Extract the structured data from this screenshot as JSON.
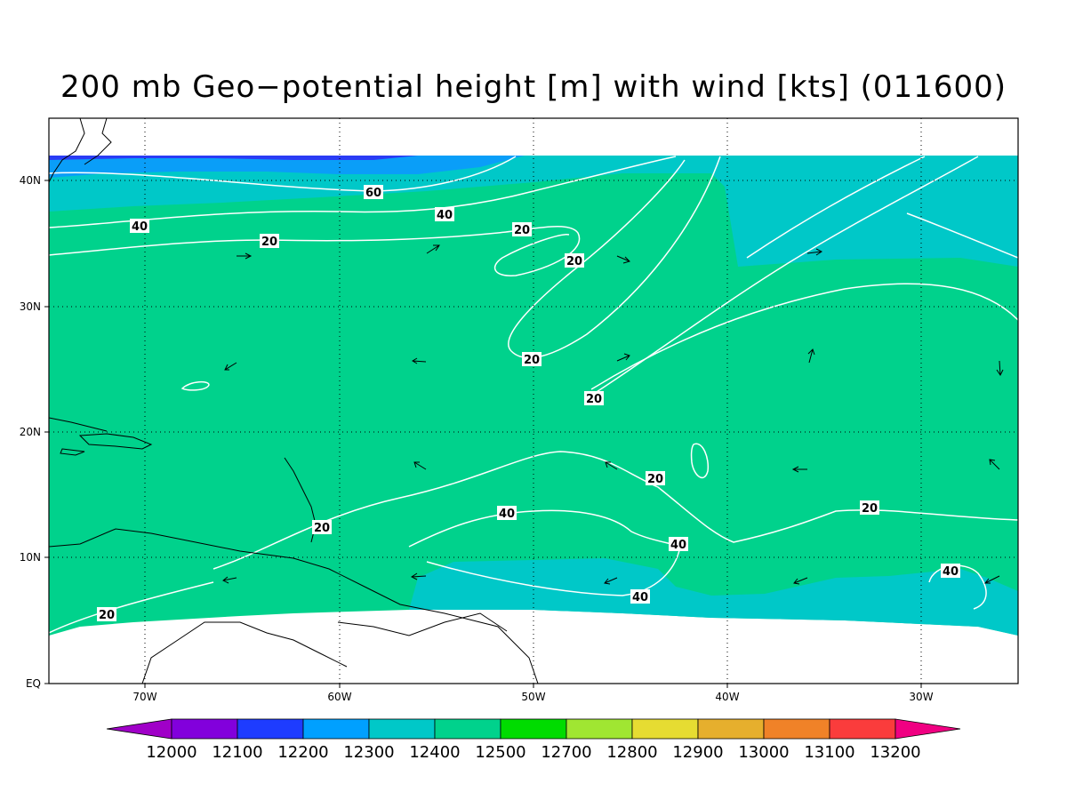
{
  "title": "200 mb Geo−potential height [m] with wind [kts] (011600)",
  "map": {
    "lat_ticks": [
      "40N",
      "30N",
      "20N",
      "10N",
      "EQ"
    ],
    "lon_ticks": [
      "70W",
      "60W",
      "50W",
      "40W",
      "30W"
    ],
    "contour_labels": [
      "60",
      "40",
      "20",
      "20",
      "20",
      "20",
      "20",
      "40",
      "20",
      "20",
      "40",
      "20",
      "40",
      "40",
      "40",
      "20"
    ],
    "colors": {
      "height_12200": "#2a3cf5",
      "height_12300": "#0a9ef8",
      "height_12400": "#00c8c8",
      "height_12500": "#00d28c",
      "contour": "#ffffff",
      "coast": "#000000"
    }
  },
  "colorbar": {
    "labels": [
      "12000",
      "12100",
      "12200",
      "12300",
      "12400",
      "12500",
      "12700",
      "12800",
      "12900",
      "13000",
      "13100",
      "13200"
    ],
    "colors": [
      "#a000c8",
      "#8200dc",
      "#1e3cff",
      "#00a0ff",
      "#00c8c8",
      "#00d28c",
      "#00dc00",
      "#a0e632",
      "#e6dc32",
      "#e6af2d",
      "#f08228",
      "#fa3c3c",
      "#f00082"
    ]
  }
}
